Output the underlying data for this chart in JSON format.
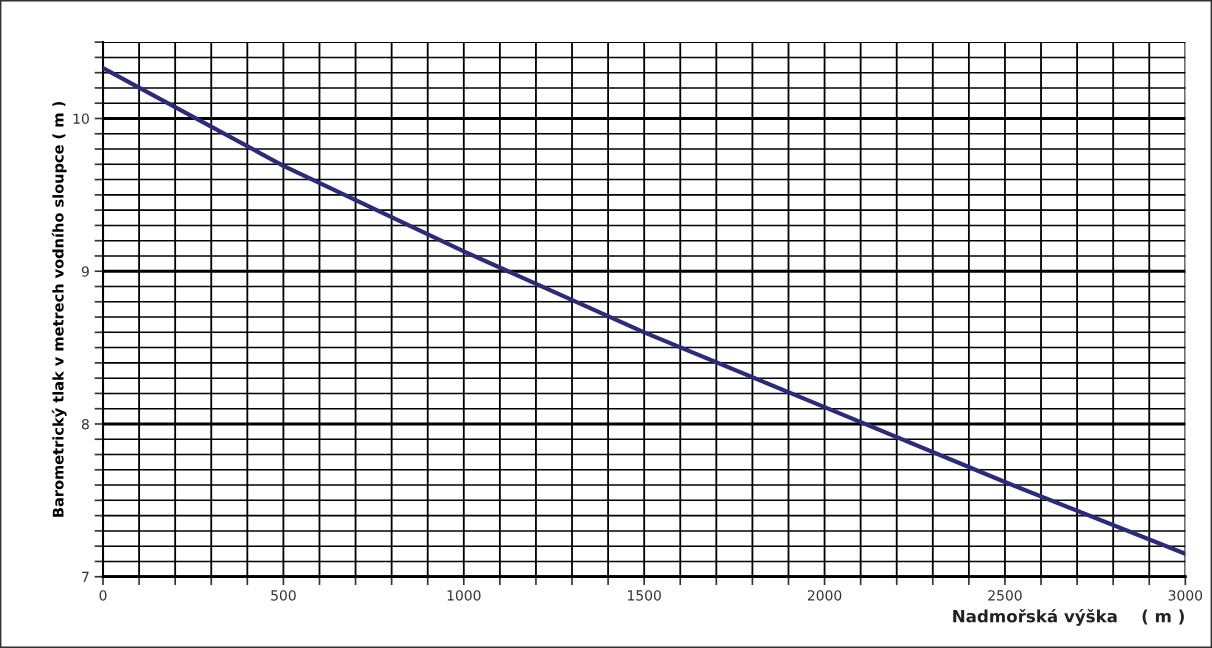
{
  "chart_data": {
    "type": "line",
    "xlabel": "Nadmořská výška    ( m )",
    "ylabel": "Barometrický tlak v metrech vodního sloupce ( m )",
    "x": [
      0,
      500,
      1000,
      1500,
      2000,
      2500,
      3000
    ],
    "series": [
      {
        "color": "#2b2b7a",
        "values": [
          10.33,
          9.69,
          9.13,
          8.6,
          8.11,
          7.62,
          7.15
        ]
      }
    ],
    "xlim": [
      0,
      3000
    ],
    "ylim": [
      7,
      10.5
    ],
    "xticks": [
      0,
      {
        "value": 100,
        "label": null
      },
      {
        "value": 200,
        "label": null
      },
      {
        "value": 300,
        "label": null
      },
      {
        "value": 400,
        "label": null
      },
      500,
      {
        "value": 600,
        "label": null
      },
      {
        "value": 700,
        "label": null
      },
      {
        "value": 800,
        "label": null
      },
      {
        "value": 900,
        "label": null
      },
      1000,
      {
        "value": 1100,
        "label": null
      },
      {
        "value": 1200,
        "label": null
      },
      {
        "value": 1300,
        "label": null
      },
      {
        "value": 1400,
        "label": null
      },
      1500,
      {
        "value": 1600,
        "label": null
      },
      {
        "value": 1700,
        "label": null
      },
      {
        "value": 1800,
        "label": null
      },
      {
        "value": 1900,
        "label": null
      },
      2000,
      {
        "value": 2100,
        "label": null
      },
      {
        "value": 2200,
        "label": null
      },
      {
        "value": 2300,
        "label": null
      },
      {
        "value": 2400,
        "label": null
      },
      2500,
      {
        "value": 2600,
        "label": null
      },
      {
        "value": 2700,
        "label": null
      },
      {
        "value": 2800,
        "label": null
      },
      {
        "value": 2900,
        "label": null
      },
      3000
    ],
    "yticks": [
      7,
      {
        "value": 7.1,
        "label": null
      },
      {
        "value": 7.2,
        "label": null
      },
      {
        "value": 7.3,
        "label": null
      },
      {
        "value": 7.4,
        "label": null
      },
      {
        "value": 7.5,
        "label": null
      },
      {
        "value": 7.6,
        "label": null
      },
      {
        "value": 7.7,
        "label": null
      },
      {
        "value": 7.8,
        "label": null
      },
      {
        "value": 7.9,
        "label": null
      },
      8,
      {
        "value": 8.1,
        "label": null
      },
      {
        "value": 8.2,
        "label": null
      },
      {
        "value": 8.3,
        "label": null
      },
      {
        "value": 8.4,
        "label": null
      },
      {
        "value": 8.5,
        "label": null
      },
      {
        "value": 8.6,
        "label": null
      },
      {
        "value": 8.7,
        "label": null
      },
      {
        "value": 8.8,
        "label": null
      },
      {
        "value": 8.9,
        "label": null
      },
      9,
      {
        "value": 9.1,
        "label": null
      },
      {
        "value": 9.2,
        "label": null
      },
      {
        "value": 9.3,
        "label": null
      },
      {
        "value": 9.4,
        "label": null
      },
      {
        "value": 9.5,
        "label": null
      },
      {
        "value": 9.6,
        "label": null
      },
      {
        "value": 9.7,
        "label": null
      },
      {
        "value": 9.8,
        "label": null
      },
      {
        "value": 9.9,
        "label": null
      },
      10,
      {
        "value": 10.1,
        "label": null
      },
      {
        "value": 10.2,
        "label": null
      },
      {
        "value": 10.3,
        "label": null
      },
      {
        "value": 10.4,
        "label": null
      },
      {
        "value": 10.5,
        "label": null
      }
    ],
    "grid": true,
    "legend": false
  }
}
